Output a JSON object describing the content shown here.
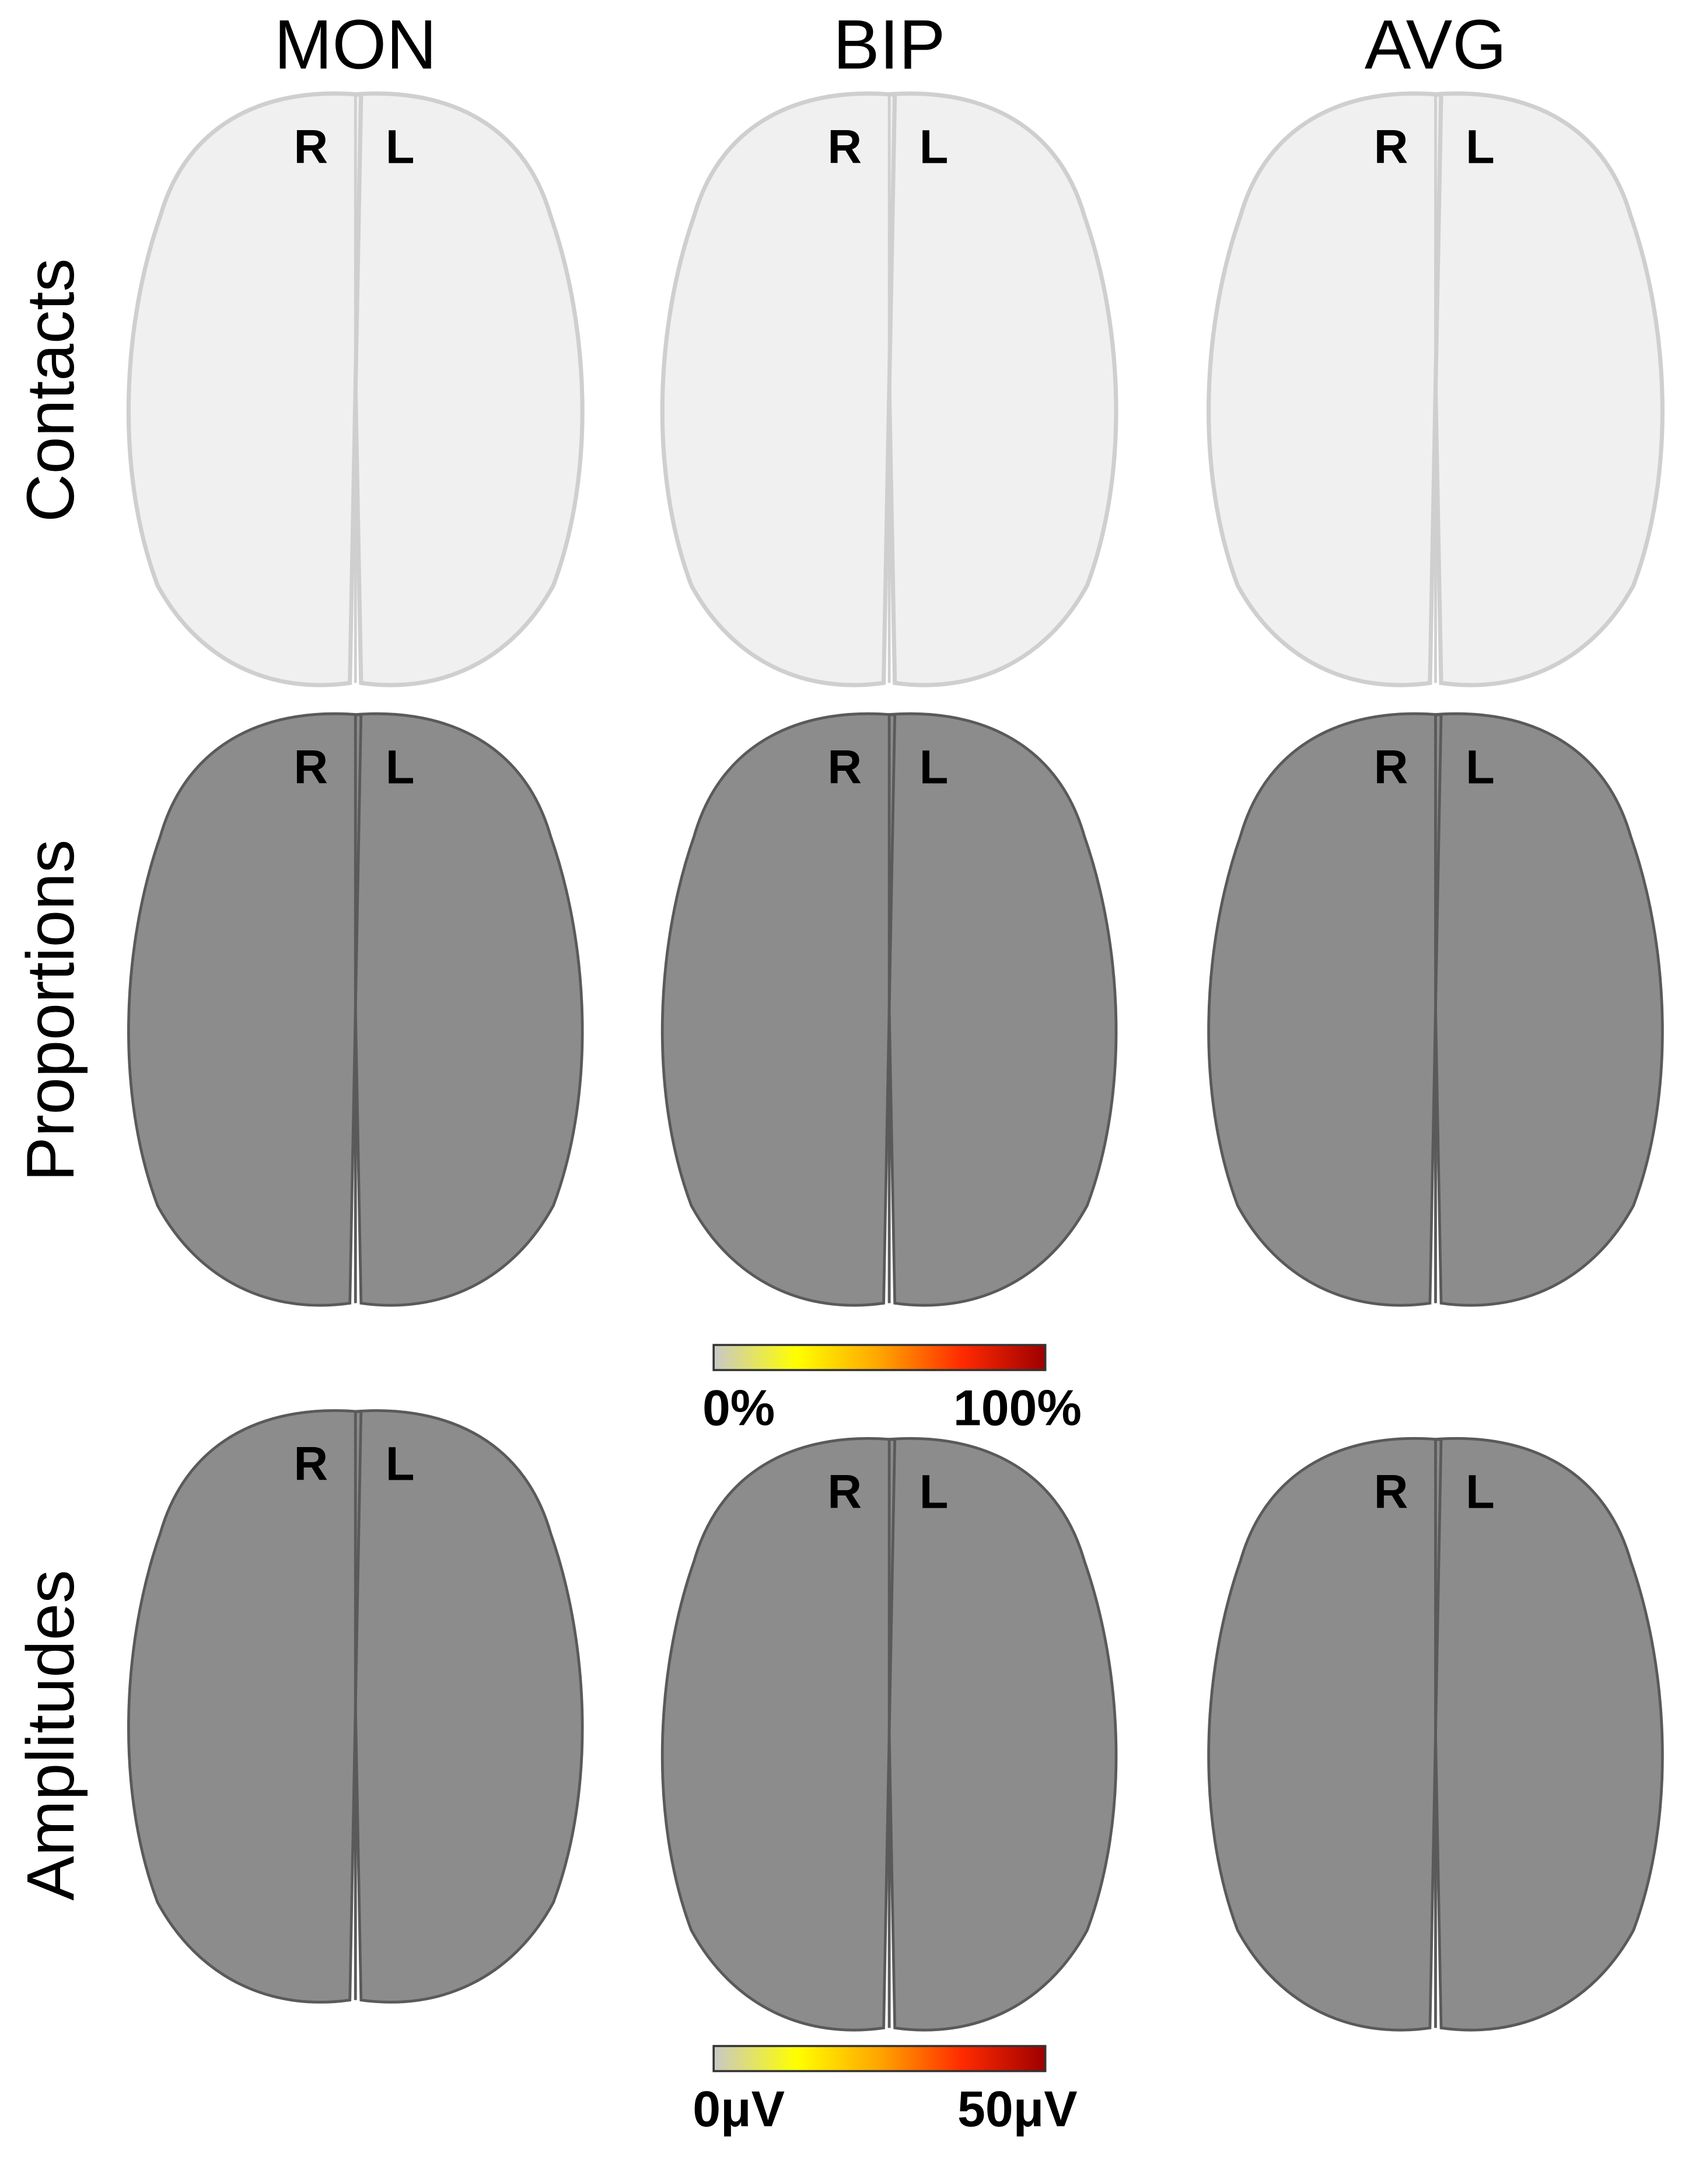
{
  "columns": [
    "MON",
    "BIP",
    "AVG"
  ],
  "rows": [
    "Contacts",
    "Proportions",
    "Amplitudes"
  ],
  "hemispheres": [
    "R",
    "L"
  ],
  "contact_colors": [
    "#6b6b6b",
    "#e067b4",
    "#9b5cc4"
  ],
  "colormap": [
    "#c8c8c8",
    "#ffff00",
    "#ffa500",
    "#ff2a00",
    "#9e0000"
  ],
  "colorbars": [
    {
      "min_label": "0%",
      "max_label": "100%"
    },
    {
      "min_label": "0μV",
      "max_label": "50μV"
    }
  ]
}
